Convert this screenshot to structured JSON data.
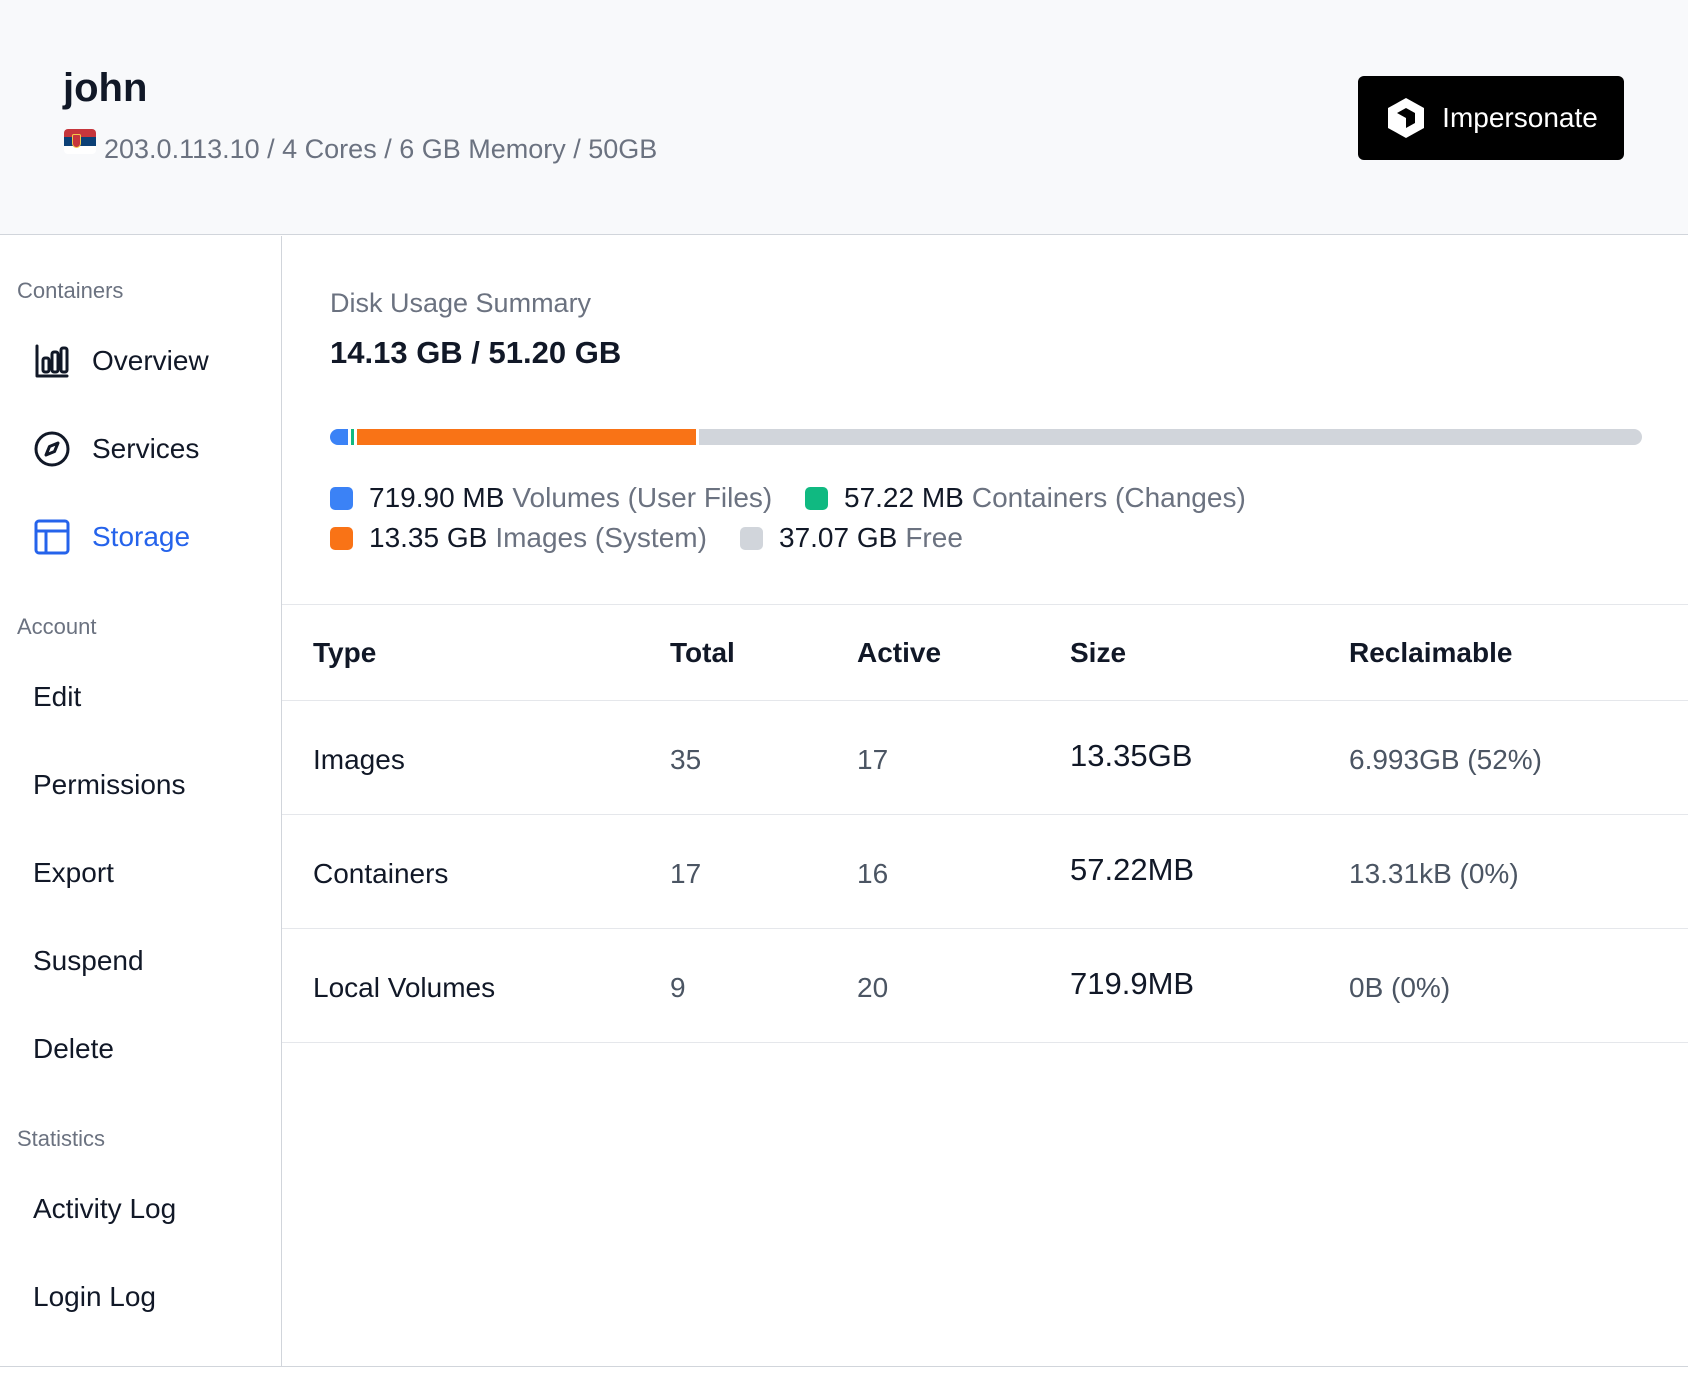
{
  "header": {
    "name": "john",
    "meta": "203.0.113.10 / 4 Cores / 6 GB Memory / 50GB",
    "impersonate_label": "Impersonate"
  },
  "sidebar": {
    "containers_title": "Containers",
    "containers_items": [
      {
        "label": "Overview",
        "icon": "bar-chart-icon"
      },
      {
        "label": "Services",
        "icon": "compass-icon"
      },
      {
        "label": "Storage",
        "icon": "table-icon",
        "active": true
      }
    ],
    "account_title": "Account",
    "account_items": [
      "Edit",
      "Permissions",
      "Export",
      "Suspend",
      "Delete"
    ],
    "statistics_title": "Statistics",
    "statistics_items": [
      "Activity Log",
      "Login Log"
    ]
  },
  "summary": {
    "label": "Disk Usage Summary",
    "value": "14.13 GB / 51.20 GB",
    "bar_fractions": {
      "volumes": 0.0141,
      "containers": 0.0011,
      "images": 0.2607,
      "free": 0.7241
    },
    "legend": [
      {
        "amount": "719.90 MB",
        "name": "Volumes (User Files)",
        "color": "#3b82f6"
      },
      {
        "amount": "57.22 MB",
        "name": "Containers (Changes)",
        "color": "#10b981"
      },
      {
        "amount": "13.35 GB",
        "name": "Images (System)",
        "color": "#f97316"
      },
      {
        "amount": "37.07 GB",
        "name": "Free",
        "color": "#d1d5db"
      }
    ]
  },
  "table": {
    "headers": [
      "Type",
      "Total",
      "Active",
      "Size",
      "Reclaimable"
    ],
    "rows": [
      {
        "type": "Images",
        "total": "35",
        "active": "17",
        "size": "13.35GB",
        "reclaimable": "6.993GB (52%)"
      },
      {
        "type": "Containers",
        "total": "17",
        "active": "16",
        "size": "57.22MB",
        "reclaimable": "13.31kB (0%)"
      },
      {
        "type": "Local Volumes",
        "total": "9",
        "active": "20",
        "size": "719.9MB",
        "reclaimable": "0B (0%)"
      }
    ]
  }
}
